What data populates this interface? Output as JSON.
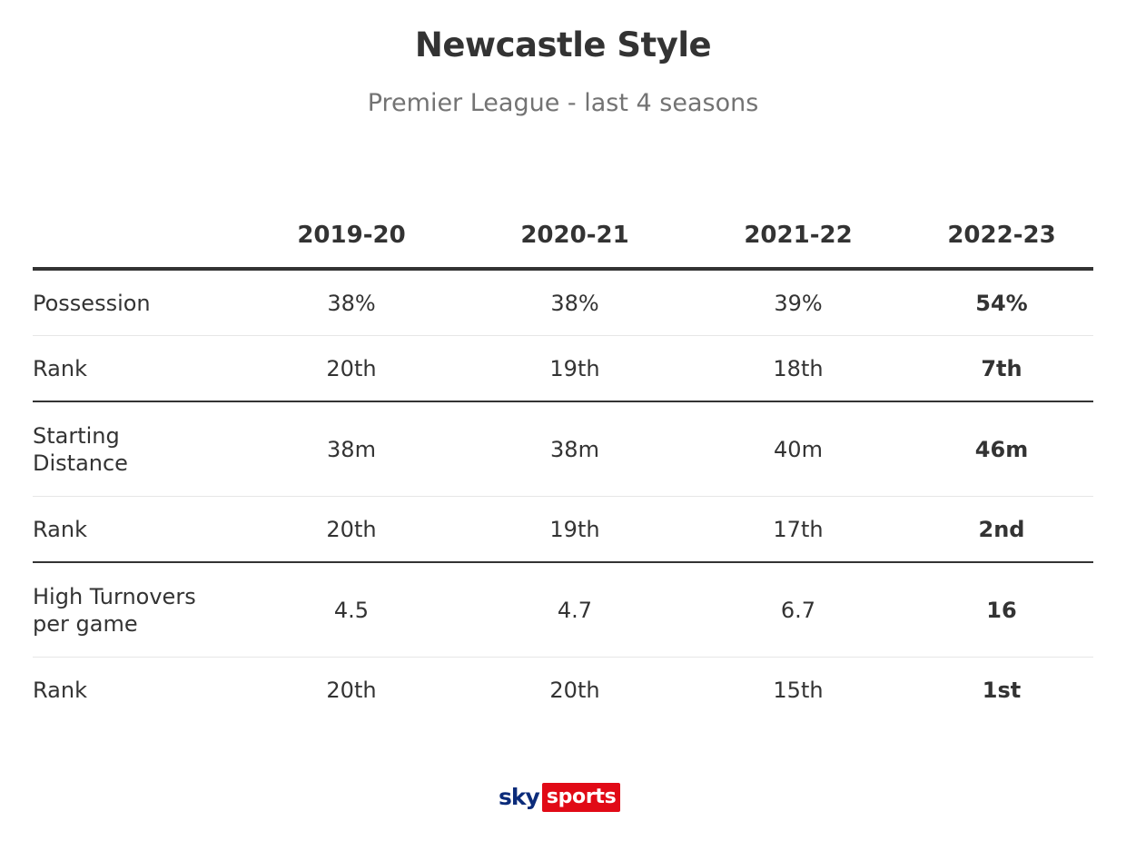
{
  "chart_data": {
    "type": "table",
    "title": "Newcastle Style",
    "subtitle": "Premier League - last 4 seasons",
    "columns": [
      "2019-20",
      "2020-21",
      "2021-22",
      "2022-23"
    ],
    "highlight_column": "2022-23",
    "rows": [
      {
        "label": "Possession",
        "values": [
          "38%",
          "38%",
          "39%",
          "54%"
        ]
      },
      {
        "label": "Rank",
        "values": [
          "20th",
          "19th",
          "18th",
          "7th"
        ]
      },
      {
        "label": "Starting Distance",
        "values": [
          "38m",
          "38m",
          "40m",
          "46m"
        ]
      },
      {
        "label": "Rank",
        "values": [
          "20th",
          "19th",
          "17th",
          "2nd"
        ]
      },
      {
        "label": "High Turnovers per game",
        "values": [
          "4.5",
          "4.7",
          "6.7",
          "16"
        ]
      },
      {
        "label": "Rank",
        "values": [
          "20th",
          "20th",
          "15th",
          "1st"
        ]
      }
    ]
  },
  "logo": {
    "part1": "sky",
    "part2": "sports",
    "colors": {
      "sky": "#0b2b7a",
      "sports_bg": "#e10a16"
    }
  },
  "colors": {
    "text": "#333333",
    "subtitle": "#737373",
    "rule": "#333333",
    "divider": "#e6e6e6"
  }
}
